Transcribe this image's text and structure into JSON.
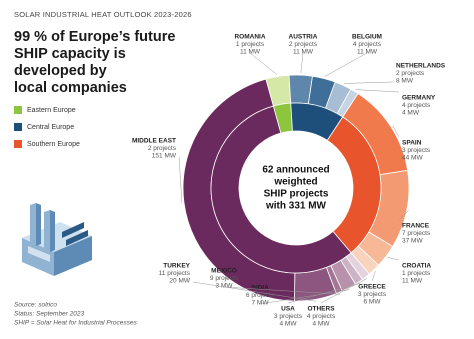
{
  "chart_data": {
    "type": "donut",
    "kicker": "SOLAR INDUSTRIAL HEAT OUTLOOK 2023-2026",
    "title_lines": [
      "99 % of Europe’s future",
      "SHIP capacity is",
      "developed by",
      "local companies"
    ],
    "center_lines": [
      "62 announced",
      "weighted",
      "SHIP projects",
      "with 331 MW"
    ],
    "groups": [
      {
        "name": "Eastern Europe",
        "color": "#8cc63f"
      },
      {
        "name": "Central Europe",
        "color": "#1d4f7a"
      },
      {
        "name": "Southern Europe",
        "color": "#e8542b"
      }
    ],
    "other_group_color": "#6b2a5e",
    "categories": [
      "ROMANIA",
      "AUSTRIA",
      "BELGIUM",
      "NETHERLANDS",
      "GERMANY",
      "SPAIN",
      "FRANCE",
      "CROATIA",
      "GREECE",
      "OTHERS",
      "USA",
      "INDIA",
      "MEXICO",
      "TURKEY",
      "MIDDLE EAST"
    ],
    "project_labels": [
      "1 projects",
      "2 projects",
      "4 projects",
      "2 projects",
      "4 projects",
      "3 projects",
      "7 projects",
      "1 projects",
      "3 projects",
      "4 projects",
      "3 projects",
      "6 projects",
      "9 projects",
      "11 projects",
      "2 projects"
    ],
    "values": [
      11,
      11,
      11,
      8,
      4,
      44,
      37,
      11,
      6,
      4,
      4,
      7,
      3,
      20,
      151
    ],
    "value_labels": [
      "11 MW",
      "11 MW",
      "11 MW",
      "8 MW",
      "4 MW",
      "44 MW",
      "37 MW",
      "11 MW",
      "6 MW",
      "4 MW",
      "4 MW",
      "7 MW",
      "3 MW",
      "20 MW",
      "151 MW"
    ],
    "group_of": [
      0,
      1,
      1,
      1,
      1,
      2,
      2,
      2,
      2,
      null,
      null,
      null,
      null,
      null,
      null
    ],
    "colors": [
      "#d5e8a6",
      "#5f87ab",
      "#3f6f99",
      "#a6bdd4",
      "#c6d5e3",
      "#f07a4c",
      "#f49a72",
      "#f7b898",
      "#fad3bd",
      "#e3d3de",
      "#cdb3c6",
      "#b892ad",
      "#a47696",
      "#8c5680",
      "#6b2a5e"
    ],
    "footnotes": [
      "Source: solrico",
      "Status: September 2023",
      "SHIP = Solar Heat for Industrial Processes"
    ]
  }
}
